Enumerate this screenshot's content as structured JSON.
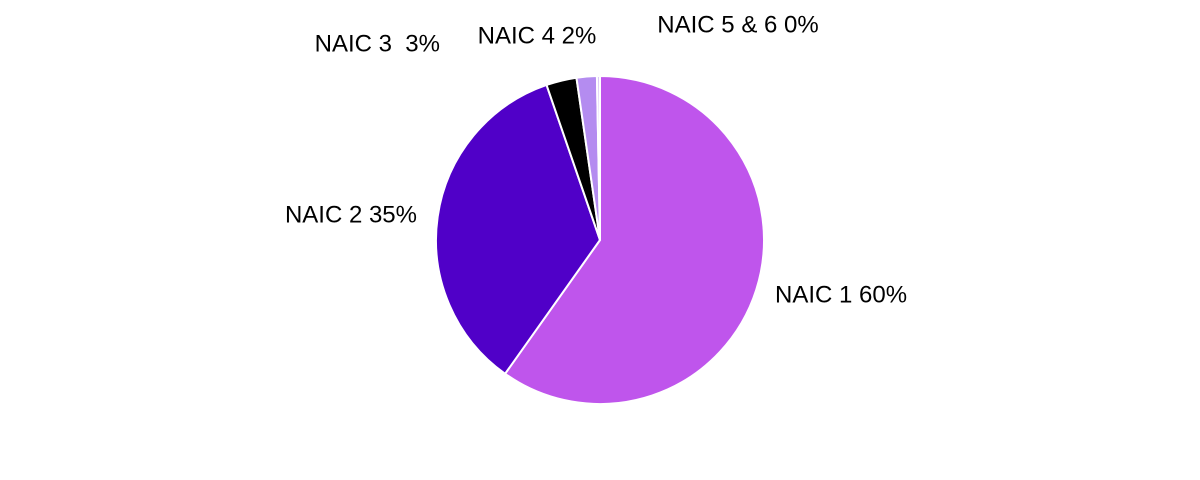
{
  "chart_data": {
    "type": "pie",
    "categories": [
      "NAIC 1 60%",
      "NAIC 2 35%",
      "NAIC 3  3%",
      "NAIC 4 2%",
      "NAIC 5 & 6 0%"
    ],
    "values": [
      60,
      35,
      3,
      2,
      0.3
    ],
    "colors": [
      "#bf55ec",
      "#5000c8",
      "#000000",
      "#b48cf0",
      "#dcccf6"
    ]
  }
}
